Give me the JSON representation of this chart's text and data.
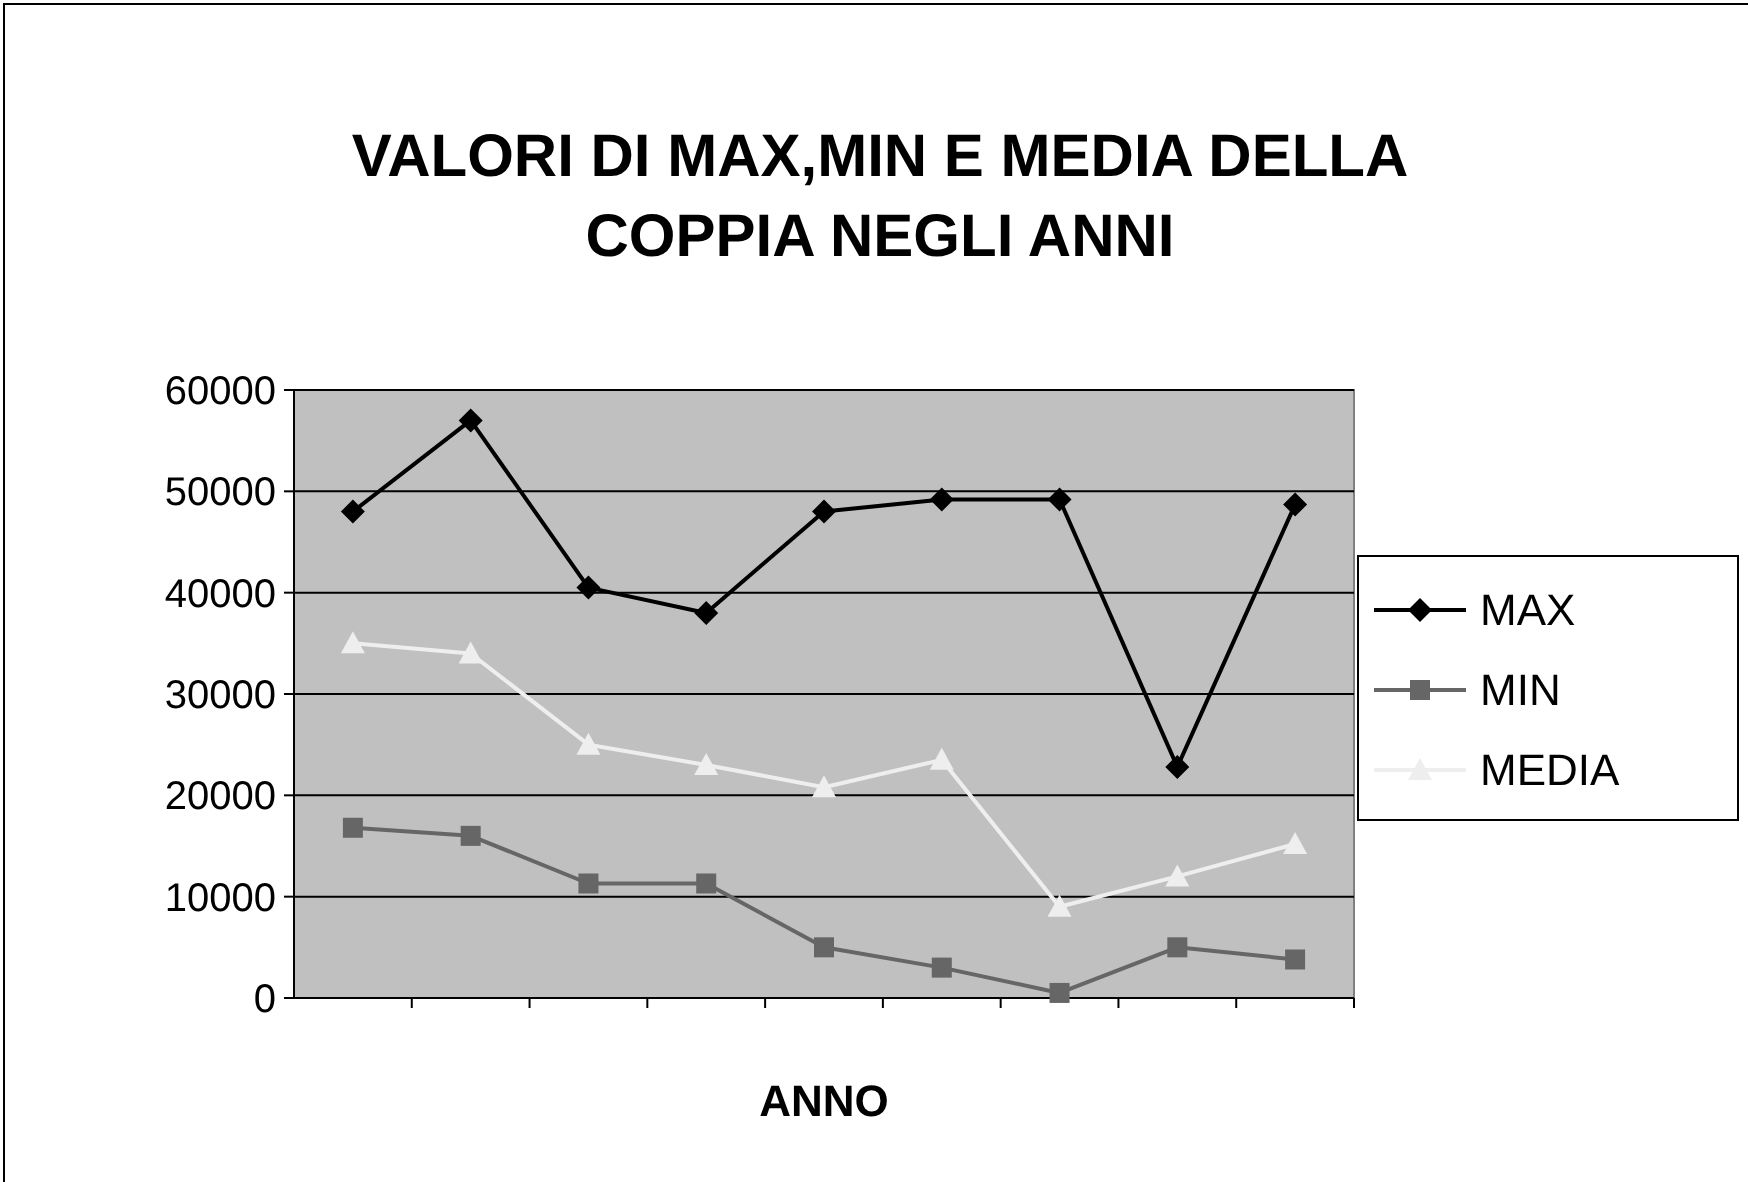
{
  "chart_data": {
    "type": "line",
    "title": "VALORI DI MAX,MIN E MEDIA DELLA COPPIA NEGLI ANNI",
    "xlabel": "ANNO",
    "categories": [
      null,
      null,
      null,
      null,
      null,
      null,
      null,
      null,
      null
    ],
    "series": [
      {
        "name": "MAX",
        "color": "#000000",
        "marker": "diamond",
        "values": [
          48000,
          57000,
          40500,
          38000,
          48000,
          49200,
          49200,
          22800,
          48700
        ]
      },
      {
        "name": "MIN",
        "color": "#666666",
        "marker": "square",
        "values": [
          16800,
          16000,
          11300,
          11300,
          5000,
          3000,
          500,
          5000,
          3800
        ]
      },
      {
        "name": "MEDIA",
        "color": "#eeeeee",
        "marker": "triangle",
        "values": [
          35000,
          34000,
          25000,
          23000,
          20800,
          23500,
          9000,
          12000,
          15200
        ]
      }
    ],
    "ylim": [
      0,
      60000
    ],
    "yticks": [
      0,
      10000,
      20000,
      30000,
      40000,
      50000,
      60000
    ],
    "grid": "y",
    "legend": "right"
  }
}
